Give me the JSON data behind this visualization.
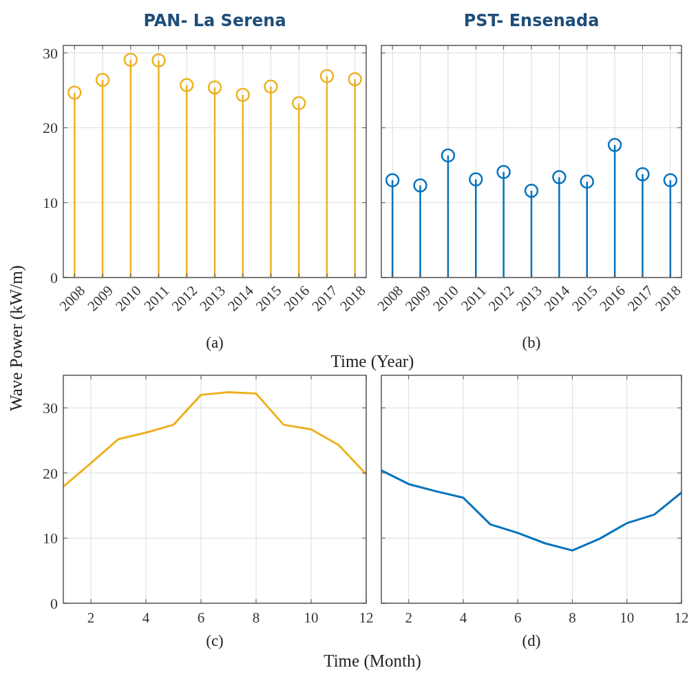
{
  "chart_data": [
    {
      "type": "lollipop",
      "title": "PAN- La Serena",
      "ylabel": "Wave Power (kW/m)",
      "xlabel": "Time (Year)",
      "annotations": [
        "(a)"
      ],
      "categories": [
        "2008",
        "2009",
        "2010",
        "2011",
        "2012",
        "2013",
        "2014",
        "2015",
        "2016",
        "2017",
        "2018"
      ],
      "series": [
        {
          "color": "#edb120",
          "values": [
            24.7,
            26.4,
            29.1,
            29.0,
            25.7,
            25.4,
            24.4,
            25.5,
            23.3,
            26.9,
            26.5
          ]
        }
      ],
      "ylim": [
        0,
        31
      ],
      "yticks": [
        0,
        10,
        20,
        30
      ],
      "grid": true,
      "marker": "circle"
    },
    {
      "type": "lollipop",
      "title": "PST- Ensenada",
      "annotations": [
        "(b)"
      ],
      "categories": [
        "2008",
        "2009",
        "2010",
        "2011",
        "2012",
        "2013",
        "2014",
        "2015",
        "2016",
        "2017",
        "2018"
      ],
      "series": [
        {
          "color": "#0072bd",
          "values": [
            13.0,
            12.3,
            16.3,
            13.1,
            14.1,
            11.6,
            13.4,
            12.8,
            17.7,
            13.8,
            13.0
          ]
        }
      ],
      "ylim": [
        0,
        31
      ],
      "yticks": [
        0,
        10,
        20,
        30
      ],
      "grid": true,
      "marker": "circle",
      "tick_labels": "x"
    },
    {
      "type": "line",
      "xlabel": "Time (Month)",
      "annotations": [
        "(c)"
      ],
      "x": [
        1,
        2,
        3,
        4,
        5,
        6,
        7,
        8,
        9,
        10,
        11,
        12
      ],
      "series": [
        {
          "color": "#edb120",
          "values": [
            17.9,
            21.5,
            25.2,
            26.2,
            27.4,
            32.0,
            32.4,
            32.2,
            27.4,
            26.7,
            24.3,
            19.8
          ]
        }
      ],
      "xlim": [
        1,
        12
      ],
      "xticks": [
        2,
        4,
        6,
        8,
        10,
        12
      ],
      "ylim": [
        0,
        35
      ],
      "yticks": [
        0,
        10,
        20,
        30
      ],
      "grid": true
    },
    {
      "type": "line",
      "annotations": [
        "(d)"
      ],
      "x": [
        1,
        2,
        3,
        4,
        5,
        6,
        7,
        8,
        9,
        10,
        11,
        12
      ],
      "series": [
        {
          "color": "#0072bd",
          "values": [
            20.4,
            18.3,
            17.2,
            16.2,
            12.1,
            10.8,
            9.2,
            8.1,
            9.9,
            12.3,
            13.6,
            17.0
          ]
        }
      ],
      "xlim": [
        1,
        12
      ],
      "xticks": [
        2,
        4,
        6,
        8,
        10,
        12
      ],
      "ylim": [
        0,
        35
      ],
      "yticks": [
        0,
        10,
        20,
        30
      ],
      "grid": true,
      "tick_labels": "x"
    }
  ]
}
